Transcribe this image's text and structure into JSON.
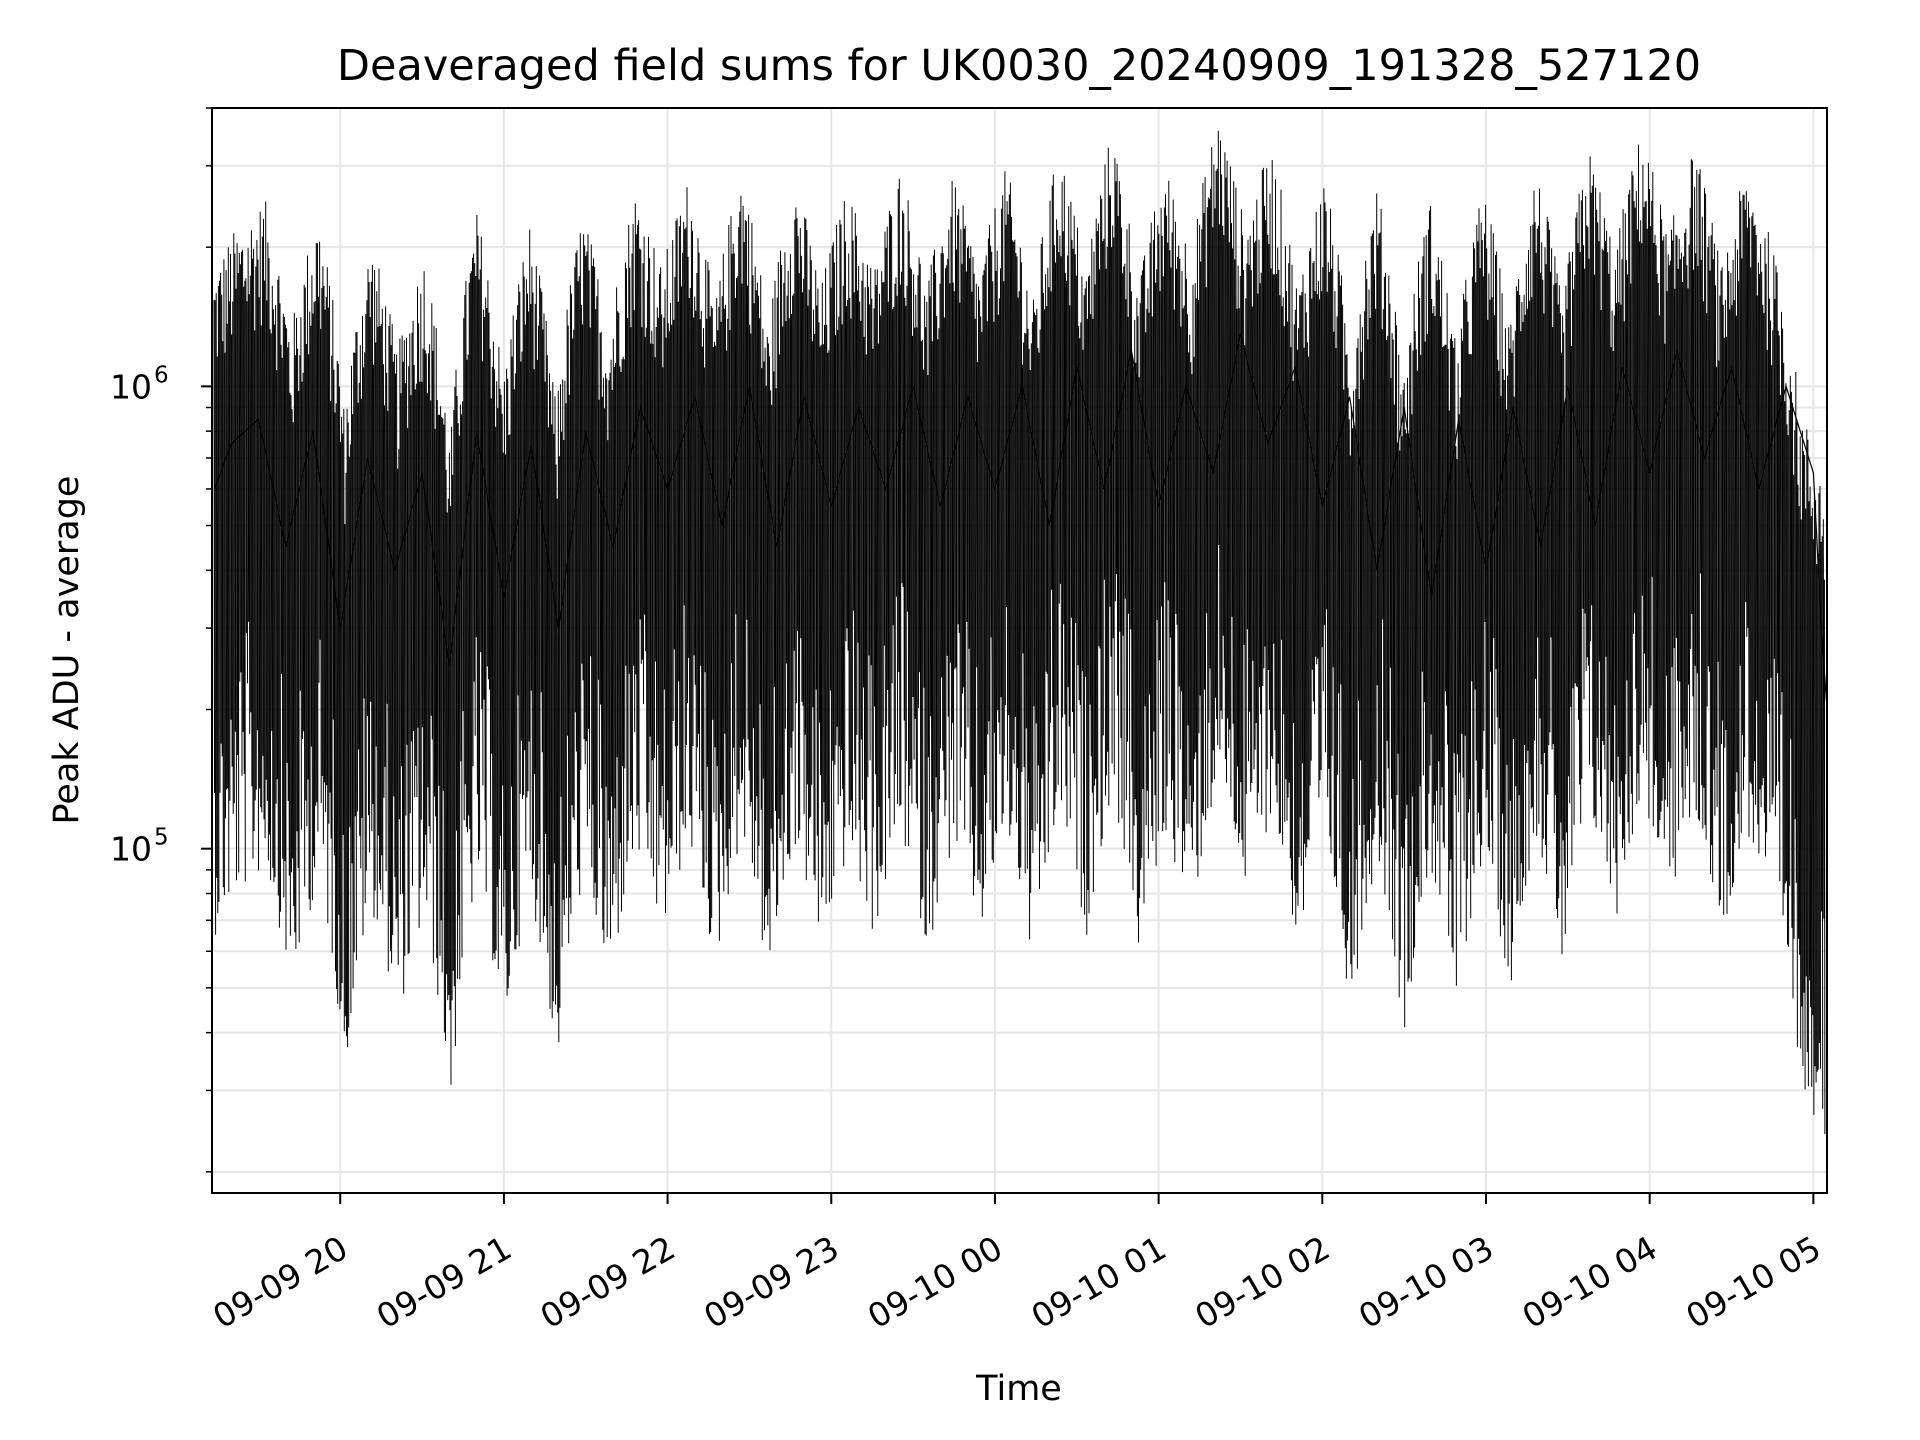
{
  "chart_data": {
    "type": "line",
    "title": "Deaveraged field sums for UK0030_20240909_191328_527120",
    "xlabel": "Time",
    "ylabel": "Peak ADU - average",
    "yscale": "log",
    "xlim": [
      "2024-09-09 19:13",
      "2024-09-10 05:05"
    ],
    "ylim": [
      18000,
      4000000
    ],
    "grid": true,
    "x_ticks": [
      "09-09 20",
      "09-09 21",
      "09-09 22",
      "09-09 23",
      "09-10 00",
      "09-10 01",
      "09-10 02",
      "09-10 03",
      "09-10 04",
      "09-10 05"
    ],
    "y_ticks": [
      {
        "base": "10",
        "exp": "5",
        "value": 100000
      },
      {
        "base": "10",
        "exp": "6",
        "value": 1000000
      }
    ],
    "line_color": "#000000",
    "x": [
      "19:14",
      "19:20",
      "19:30",
      "19:40",
      "19:50",
      "20:00",
      "20:10",
      "20:20",
      "20:30",
      "20:40",
      "20:50",
      "21:00",
      "21:10",
      "21:20",
      "21:30",
      "21:40",
      "21:50",
      "22:00",
      "22:10",
      "22:20",
      "22:30",
      "22:40",
      "22:50",
      "23:00",
      "23:10",
      "23:20",
      "23:30",
      "23:40",
      "23:50",
      "00:00",
      "00:10",
      "00:20",
      "00:30",
      "00:40",
      "00:50",
      "01:00",
      "01:10",
      "01:20",
      "01:30",
      "01:40",
      "01:50",
      "02:00",
      "02:10",
      "02:20",
      "02:30",
      "02:40",
      "02:50",
      "03:00",
      "03:10",
      "03:20",
      "03:30",
      "03:40",
      "03:50",
      "04:00",
      "04:10",
      "04:20",
      "04:30",
      "04:40",
      "04:50",
      "05:00",
      "05:03",
      "05:05"
    ],
    "series": [
      {
        "values": [
          600000,
          750000,
          850000,
          450000,
          800000,
          300000,
          700000,
          400000,
          650000,
          250000,
          800000,
          350000,
          750000,
          300000,
          800000,
          450000,
          900000,
          600000,
          950000,
          500000,
          1000000,
          450000,
          950000,
          550000,
          900000,
          600000,
          1000000,
          550000,
          950000,
          600000,
          1000000,
          500000,
          1100000,
          600000,
          1200000,
          550000,
          1000000,
          650000,
          1300000,
          750000,
          1100000,
          550000,
          950000,
          400000,
          900000,
          350000,
          850000,
          400000,
          900000,
          450000,
          1000000,
          500000,
          1100000,
          650000,
          1200000,
          700000,
          1100000,
          600000,
          1000000,
          650000,
          300000,
          200000
        ]
      }
    ]
  }
}
